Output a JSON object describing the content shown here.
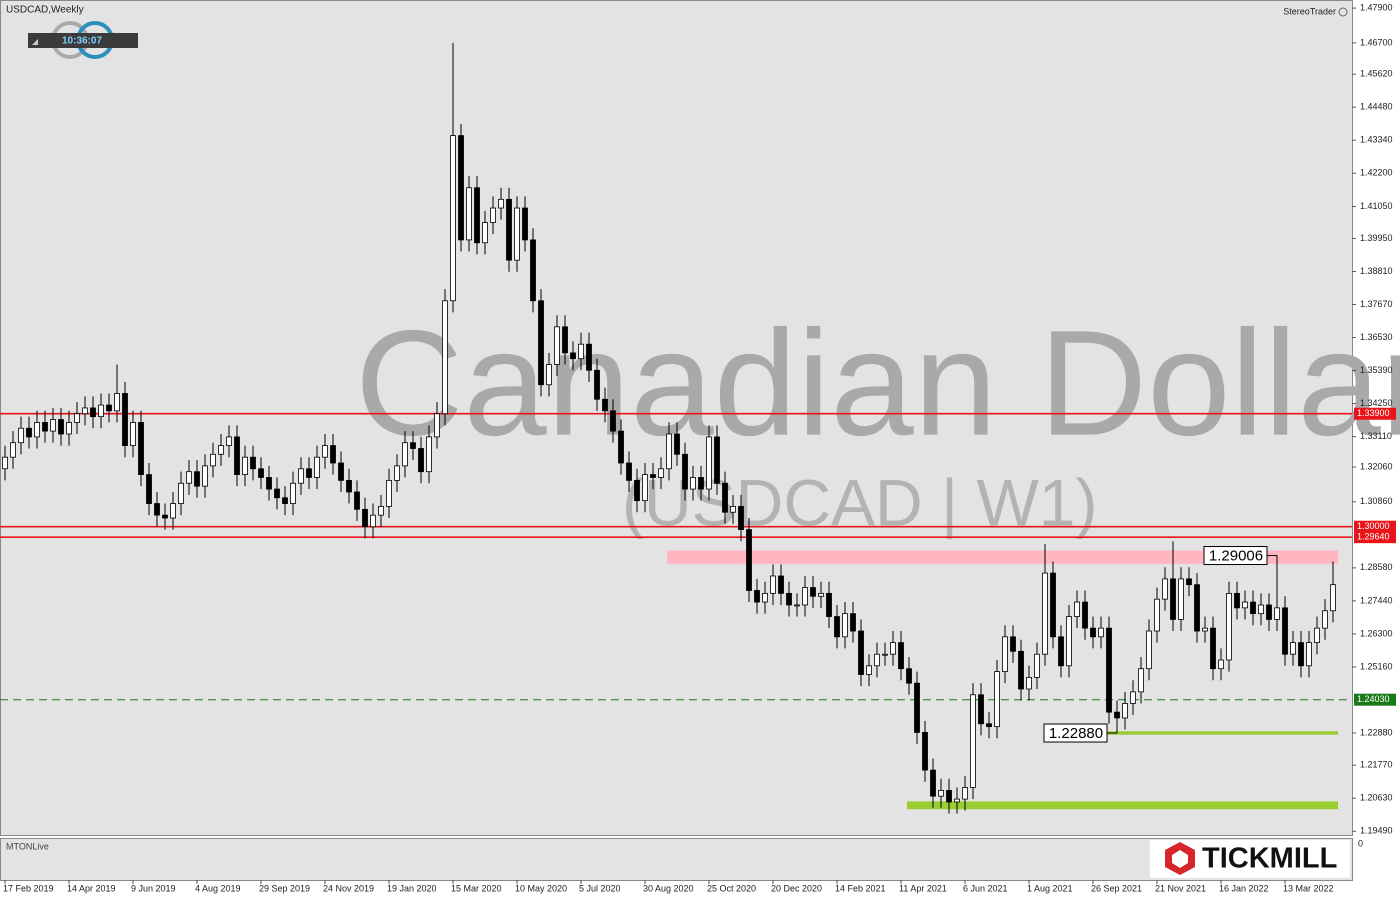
{
  "chart_data": {
    "type": "candlestick",
    "title": "USDCAD,Weekly",
    "brand": "StereoTrader",
    "clock": "10:36:07",
    "watermark": "Canadian Dollar",
    "watermark_sub": "(USDCAD | W1)",
    "indicator": "MTONLive",
    "indicator_ticks": [
      0
    ],
    "logo": "TICKMILL",
    "ylim": [
      1.1936,
      1.4818
    ],
    "yticks": [
      {
        "value": 1.479,
        "label": "1.47900"
      },
      {
        "value": 1.467,
        "label": "1.46700"
      },
      {
        "value": 1.4562,
        "label": "1.45620"
      },
      {
        "value": 1.4448,
        "label": "1.44480"
      },
      {
        "value": 1.4334,
        "label": "1.43340"
      },
      {
        "value": 1.422,
        "label": "1.42200"
      },
      {
        "value": 1.4105,
        "label": "1.41050"
      },
      {
        "value": 1.3995,
        "label": "1.39950"
      },
      {
        "value": 1.3881,
        "label": "1.38810"
      },
      {
        "value": 1.3767,
        "label": "1.37670"
      },
      {
        "value": 1.3653,
        "label": "1.36530"
      },
      {
        "value": 1.3539,
        "label": "1.35390"
      },
      {
        "value": 1.3425,
        "label": "1.34250"
      },
      {
        "value": 1.3311,
        "label": "1.33110"
      },
      {
        "value": 1.3206,
        "label": "1.32060"
      },
      {
        "value": 1.3086,
        "label": "1.30860"
      },
      {
        "value": 1.2858,
        "label": "1.28580"
      },
      {
        "value": 1.2744,
        "label": "1.27440"
      },
      {
        "value": 1.263,
        "label": "1.26300"
      },
      {
        "value": 1.2516,
        "label": "1.25160"
      },
      {
        "value": 1.2288,
        "label": "1.22880"
      },
      {
        "value": 1.2177,
        "label": "1.21770"
      },
      {
        "value": 1.2063,
        "label": "1.20630"
      },
      {
        "value": 1.1949,
        "label": "1.19490"
      }
    ],
    "levels": [
      {
        "value": 1.339,
        "label": "1.33900",
        "color": "#e8141a",
        "dashed": false
      },
      {
        "value": 1.3,
        "label": "1.30000",
        "color": "#e8141a",
        "dashed": false
      },
      {
        "value": 1.2964,
        "label": "1.29640",
        "color": "#e8141a",
        "dashed": false
      },
      {
        "value": 1.2403,
        "label": "1.24030",
        "color": "#1a7a1a",
        "dashed": true
      }
    ],
    "zones": [
      {
        "from": 1.2872,
        "to": 1.2918,
        "start": 84,
        "color": "#ffb6c1"
      },
      {
        "from": 1.2025,
        "to": 1.2052,
        "start": 114,
        "color": "#9acd32"
      },
      {
        "from": 1.2282,
        "to": 1.2294,
        "start": 139,
        "color": "#9acd32"
      }
    ],
    "annotations": [
      {
        "label": "1.29006",
        "value": 1.29006,
        "index": 159
      },
      {
        "label": "1.22880",
        "value": 1.2288,
        "index": 139
      }
    ],
    "categories": [
      "17 Feb 2019",
      null,
      null,
      null,
      null,
      null,
      null,
      null,
      "14 Apr 2019",
      null,
      null,
      null,
      null,
      null,
      null,
      null,
      "9 Jun 2019",
      null,
      null,
      null,
      null,
      null,
      null,
      null,
      "4 Aug 2019",
      null,
      null,
      null,
      null,
      null,
      null,
      null,
      "29 Sep 2019",
      null,
      null,
      null,
      null,
      null,
      null,
      null,
      "24 Nov 2019",
      null,
      null,
      null,
      null,
      null,
      null,
      null,
      "19 Jan 2020",
      null,
      null,
      null,
      null,
      null,
      null,
      null,
      "15 Mar 2020",
      null,
      null,
      null,
      null,
      null,
      null,
      null,
      "10 May 2020",
      null,
      null,
      null,
      null,
      null,
      null,
      null,
      "5 Jul 2020",
      null,
      null,
      null,
      null,
      null,
      null,
      null,
      "30 Aug 2020",
      null,
      null,
      null,
      null,
      null,
      null,
      null,
      "25 Oct 2020",
      null,
      null,
      null,
      null,
      null,
      null,
      null,
      "20 Dec 2020",
      null,
      null,
      null,
      null,
      null,
      null,
      null,
      "14 Feb 2021",
      null,
      null,
      null,
      null,
      null,
      null,
      null,
      "11 Apr 2021",
      null,
      null,
      null,
      null,
      null,
      null,
      null,
      "6 Jun 2021",
      null,
      null,
      null,
      null,
      null,
      null,
      null,
      "1 Aug 2021",
      null,
      null,
      null,
      null,
      null,
      null,
      null,
      "26 Sep 2021",
      null,
      null,
      null,
      null,
      null,
      null,
      null,
      "21 Nov 2021",
      null,
      null,
      null,
      null,
      null,
      null,
      null,
      "16 Jan 2022",
      null,
      null,
      null,
      null,
      null,
      null,
      null,
      "13 Mar 2022",
      null,
      null,
      null,
      null,
      null,
      null
    ],
    "open": [
      1.32,
      1.324,
      1.329,
      1.334,
      1.331,
      1.336,
      1.333,
      1.337,
      1.332,
      1.336,
      1.339,
      1.341,
      1.338,
      1.342,
      1.34,
      1.346,
      1.328,
      1.336,
      1.318,
      1.308,
      1.304,
      1.303,
      1.308,
      1.315,
      1.319,
      1.314,
      1.321,
      1.325,
      1.328,
      1.331,
      1.318,
      1.324,
      1.32,
      1.317,
      1.313,
      1.31,
      1.308,
      1.315,
      1.32,
      1.317,
      1.324,
      1.328,
      1.322,
      1.316,
      1.312,
      1.306,
      1.3,
      1.304,
      1.307,
      1.316,
      1.321,
      1.329,
      1.327,
      1.319,
      1.331,
      1.339,
      1.378,
      1.435,
      1.399,
      1.417,
      1.398,
      1.405,
      1.41,
      1.413,
      1.392,
      1.41,
      1.399,
      1.378,
      1.349,
      1.356,
      1.369,
      1.36,
      1.358,
      1.363,
      1.354,
      1.344,
      1.34,
      1.333,
      1.322,
      1.316,
      1.309,
      1.318,
      1.317,
      1.32,
      1.332,
      1.325,
      1.313,
      1.317,
      1.313,
      1.331,
      1.315,
      1.305,
      1.307,
      1.299,
      1.278,
      1.274,
      1.277,
      1.283,
      1.277,
      1.273,
      1.273,
      1.279,
      1.276,
      1.277,
      1.269,
      1.262,
      1.27,
      1.264,
      1.249,
      1.252,
      1.256,
      1.256,
      1.26,
      1.251,
      1.246,
      1.229,
      1.216,
      1.207,
      1.209,
      1.205,
      1.206,
      1.21,
      1.242,
      1.232,
      1.231,
      1.25,
      1.262,
      1.257,
      1.244,
      1.248,
      1.256,
      1.284,
      1.262,
      1.252,
      1.269,
      1.274,
      1.265,
      1.262,
      1.265,
      1.236,
      1.234,
      1.239,
      1.243,
      1.251,
      1.264,
      1.275,
      1.282,
      1.268,
      1.282,
      1.28,
      1.264,
      1.265,
      1.251,
      1.254,
      1.277,
      1.272,
      1.274,
      1.27,
      1.273,
      1.268,
      1.272,
      1.256,
      1.26,
      1.252,
      1.26,
      1.265,
      1.271
    ],
    "high": [
      1.328,
      1.333,
      1.338,
      1.338,
      1.34,
      1.34,
      1.341,
      1.341,
      1.34,
      1.343,
      1.345,
      1.345,
      1.346,
      1.346,
      1.356,
      1.35,
      1.34,
      1.34,
      1.322,
      1.312,
      1.308,
      1.312,
      1.319,
      1.323,
      1.323,
      1.325,
      1.329,
      1.332,
      1.335,
      1.335,
      1.328,
      1.328,
      1.324,
      1.321,
      1.317,
      1.314,
      1.319,
      1.324,
      1.324,
      1.328,
      1.332,
      1.332,
      1.326,
      1.32,
      1.316,
      1.31,
      1.308,
      1.311,
      1.32,
      1.325,
      1.333,
      1.333,
      1.331,
      1.335,
      1.343,
      1.382,
      1.467,
      1.439,
      1.421,
      1.421,
      1.409,
      1.414,
      1.417,
      1.417,
      1.414,
      1.414,
      1.403,
      1.382,
      1.36,
      1.373,
      1.373,
      1.364,
      1.367,
      1.367,
      1.358,
      1.348,
      1.344,
      1.337,
      1.326,
      1.32,
      1.322,
      1.322,
      1.324,
      1.336,
      1.336,
      1.329,
      1.321,
      1.321,
      1.335,
      1.335,
      1.319,
      1.311,
      1.311,
      1.303,
      1.282,
      1.281,
      1.287,
      1.287,
      1.281,
      1.277,
      1.283,
      1.283,
      1.281,
      1.281,
      1.273,
      1.274,
      1.274,
      1.268,
      1.256,
      1.26,
      1.26,
      1.264,
      1.264,
      1.255,
      1.25,
      1.233,
      1.22,
      1.213,
      1.213,
      1.21,
      1.214,
      1.246,
      1.246,
      1.236,
      1.254,
      1.266,
      1.266,
      1.261,
      1.252,
      1.26,
      1.294,
      1.288,
      1.266,
      1.273,
      1.278,
      1.278,
      1.269,
      1.269,
      1.269,
      1.24,
      1.243,
      1.247,
      1.255,
      1.268,
      1.279,
      1.286,
      1.295,
      1.286,
      1.286,
      1.284,
      1.269,
      1.269,
      1.258,
      1.281,
      1.281,
      1.278,
      1.278,
      1.277,
      1.277,
      1.2901,
      1.276,
      1.264,
      1.264,
      1.264,
      1.269,
      1.275,
      1.288
    ],
    "low": [
      1.316,
      1.32,
      1.325,
      1.327,
      1.327,
      1.329,
      1.329,
      1.328,
      1.328,
      1.332,
      1.335,
      1.334,
      1.334,
      1.336,
      1.336,
      1.324,
      1.324,
      1.314,
      1.304,
      1.3,
      1.299,
      1.299,
      1.304,
      1.311,
      1.31,
      1.31,
      1.317,
      1.321,
      1.324,
      1.314,
      1.314,
      1.316,
      1.313,
      1.309,
      1.306,
      1.304,
      1.304,
      1.311,
      1.313,
      1.313,
      1.32,
      1.318,
      1.312,
      1.308,
      1.302,
      1.296,
      1.296,
      1.3,
      1.303,
      1.312,
      1.317,
      1.323,
      1.315,
      1.315,
      1.327,
      1.335,
      1.374,
      1.395,
      1.395,
      1.394,
      1.394,
      1.401,
      1.406,
      1.388,
      1.388,
      1.395,
      1.374,
      1.345,
      1.345,
      1.352,
      1.356,
      1.354,
      1.354,
      1.35,
      1.34,
      1.336,
      1.329,
      1.318,
      1.312,
      1.305,
      1.305,
      1.313,
      1.313,
      1.316,
      1.321,
      1.309,
      1.309,
      1.309,
      1.309,
      1.311,
      1.301,
      1.301,
      1.295,
      1.274,
      1.27,
      1.27,
      1.273,
      1.273,
      1.269,
      1.269,
      1.269,
      1.272,
      1.272,
      1.265,
      1.258,
      1.258,
      1.26,
      1.245,
      1.245,
      1.248,
      1.252,
      1.252,
      1.247,
      1.242,
      1.225,
      1.212,
      1.203,
      1.203,
      1.201,
      1.201,
      1.202,
      1.206,
      1.228,
      1.227,
      1.227,
      1.246,
      1.253,
      1.24,
      1.24,
      1.244,
      1.252,
      1.258,
      1.248,
      1.248,
      1.265,
      1.261,
      1.258,
      1.258,
      1.232,
      1.2288,
      1.23,
      1.235,
      1.239,
      1.247,
      1.26,
      1.271,
      1.264,
      1.264,
      1.276,
      1.26,
      1.26,
      1.247,
      1.247,
      1.25,
      1.268,
      1.268,
      1.266,
      1.266,
      1.264,
      1.264,
      1.252,
      1.252,
      1.248,
      1.248,
      1.256,
      1.261,
      1.267
    ],
    "close": [
      1.324,
      1.329,
      1.334,
      1.331,
      1.336,
      1.333,
      1.337,
      1.332,
      1.336,
      1.339,
      1.341,
      1.338,
      1.342,
      1.34,
      1.346,
      1.328,
      1.336,
      1.318,
      1.308,
      1.304,
      1.303,
      1.308,
      1.315,
      1.319,
      1.314,
      1.321,
      1.325,
      1.328,
      1.331,
      1.318,
      1.324,
      1.32,
      1.317,
      1.313,
      1.31,
      1.308,
      1.315,
      1.32,
      1.317,
      1.324,
      1.328,
      1.322,
      1.316,
      1.312,
      1.306,
      1.3,
      1.304,
      1.307,
      1.316,
      1.321,
      1.329,
      1.327,
      1.319,
      1.331,
      1.339,
      1.378,
      1.435,
      1.399,
      1.417,
      1.398,
      1.405,
      1.41,
      1.413,
      1.392,
      1.41,
      1.399,
      1.378,
      1.349,
      1.356,
      1.369,
      1.36,
      1.358,
      1.363,
      1.354,
      1.344,
      1.34,
      1.333,
      1.322,
      1.316,
      1.309,
      1.318,
      1.317,
      1.32,
      1.332,
      1.325,
      1.313,
      1.317,
      1.313,
      1.331,
      1.315,
      1.305,
      1.307,
      1.299,
      1.278,
      1.274,
      1.277,
      1.283,
      1.277,
      1.273,
      1.273,
      1.279,
      1.276,
      1.277,
      1.269,
      1.262,
      1.27,
      1.264,
      1.249,
      1.252,
      1.256,
      1.256,
      1.26,
      1.251,
      1.246,
      1.229,
      1.216,
      1.207,
      1.209,
      1.205,
      1.206,
      1.21,
      1.242,
      1.232,
      1.231,
      1.25,
      1.262,
      1.257,
      1.244,
      1.248,
      1.256,
      1.284,
      1.262,
      1.252,
      1.269,
      1.274,
      1.265,
      1.262,
      1.265,
      1.236,
      1.234,
      1.239,
      1.243,
      1.251,
      1.264,
      1.275,
      1.282,
      1.268,
      1.282,
      1.28,
      1.264,
      1.265,
      1.251,
      1.254,
      1.277,
      1.272,
      1.274,
      1.27,
      1.273,
      1.268,
      1.272,
      1.256,
      1.26,
      1.252,
      1.26,
      1.265,
      1.271,
      1.28
    ]
  }
}
